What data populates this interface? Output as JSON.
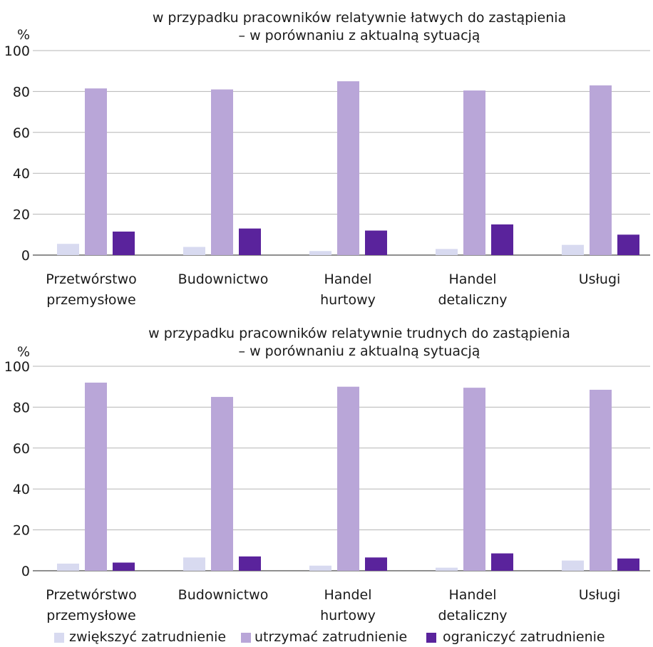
{
  "legend": [
    {
      "label": "zwiększyć zatrudnienie",
      "color": "#d8daf0"
    },
    {
      "label": "utrzymać zatrudnienie",
      "color": "#b9a6d8"
    },
    {
      "label": "ograniczyć zatrudnienie",
      "color": "#5a239c"
    }
  ],
  "chart_data": [
    {
      "type": "bar",
      "title_lines": [
        "w przypadku pracowników relatywnie łatwych do zastąpienia",
        "– w porównaniu z aktualną sytuacją"
      ],
      "ylabel": "%",
      "ylim": [
        0,
        100
      ],
      "yticks": [
        "0",
        "20",
        "40",
        "60",
        "80",
        "100"
      ],
      "grid": true,
      "categories": [
        [
          "Przetwórstwo",
          "przemysłowe"
        ],
        [
          "Budownictwo"
        ],
        [
          "Handel",
          "hurtowy"
        ],
        [
          "Handel",
          "detaliczny"
        ],
        [
          "Usługi"
        ]
      ],
      "series": [
        {
          "name": "zwiększyć zatrudnienie",
          "values": [
            5.5,
            4.0,
            2.0,
            3.0,
            5.0
          ]
        },
        {
          "name": "utrzymać zatrudnienie",
          "values": [
            81.5,
            81.0,
            85.0,
            80.5,
            83.0
          ]
        },
        {
          "name": "ograniczyć zatrudnienie",
          "values": [
            11.5,
            13.0,
            12.0,
            15.0,
            10.0
          ]
        }
      ]
    },
    {
      "type": "bar",
      "title_lines": [
        "w przypadku pracowników relatywnie trudnych do zastąpienia",
        "– w porównaniu z aktualną sytuacją"
      ],
      "ylabel": "%",
      "ylim": [
        0,
        100
      ],
      "yticks": [
        "0",
        "20",
        "40",
        "60",
        "80",
        "100"
      ],
      "grid": true,
      "categories": [
        [
          "Przetwórstwo",
          "przemysłowe"
        ],
        [
          "Budownictwo"
        ],
        [
          "Handel",
          "hurtowy"
        ],
        [
          "Handel",
          "detaliczny"
        ],
        [
          "Usługi"
        ]
      ],
      "series": [
        {
          "name": "zwiększyć zatrudnienie",
          "values": [
            3.5,
            6.5,
            2.5,
            1.5,
            5.0
          ]
        },
        {
          "name": "utrzymać zatrudnienie",
          "values": [
            92.0,
            85.0,
            90.0,
            89.5,
            88.5
          ]
        },
        {
          "name": "ograniczyć zatrudnienie",
          "values": [
            4.0,
            7.0,
            6.5,
            8.5,
            6.0
          ]
        }
      ]
    }
  ]
}
